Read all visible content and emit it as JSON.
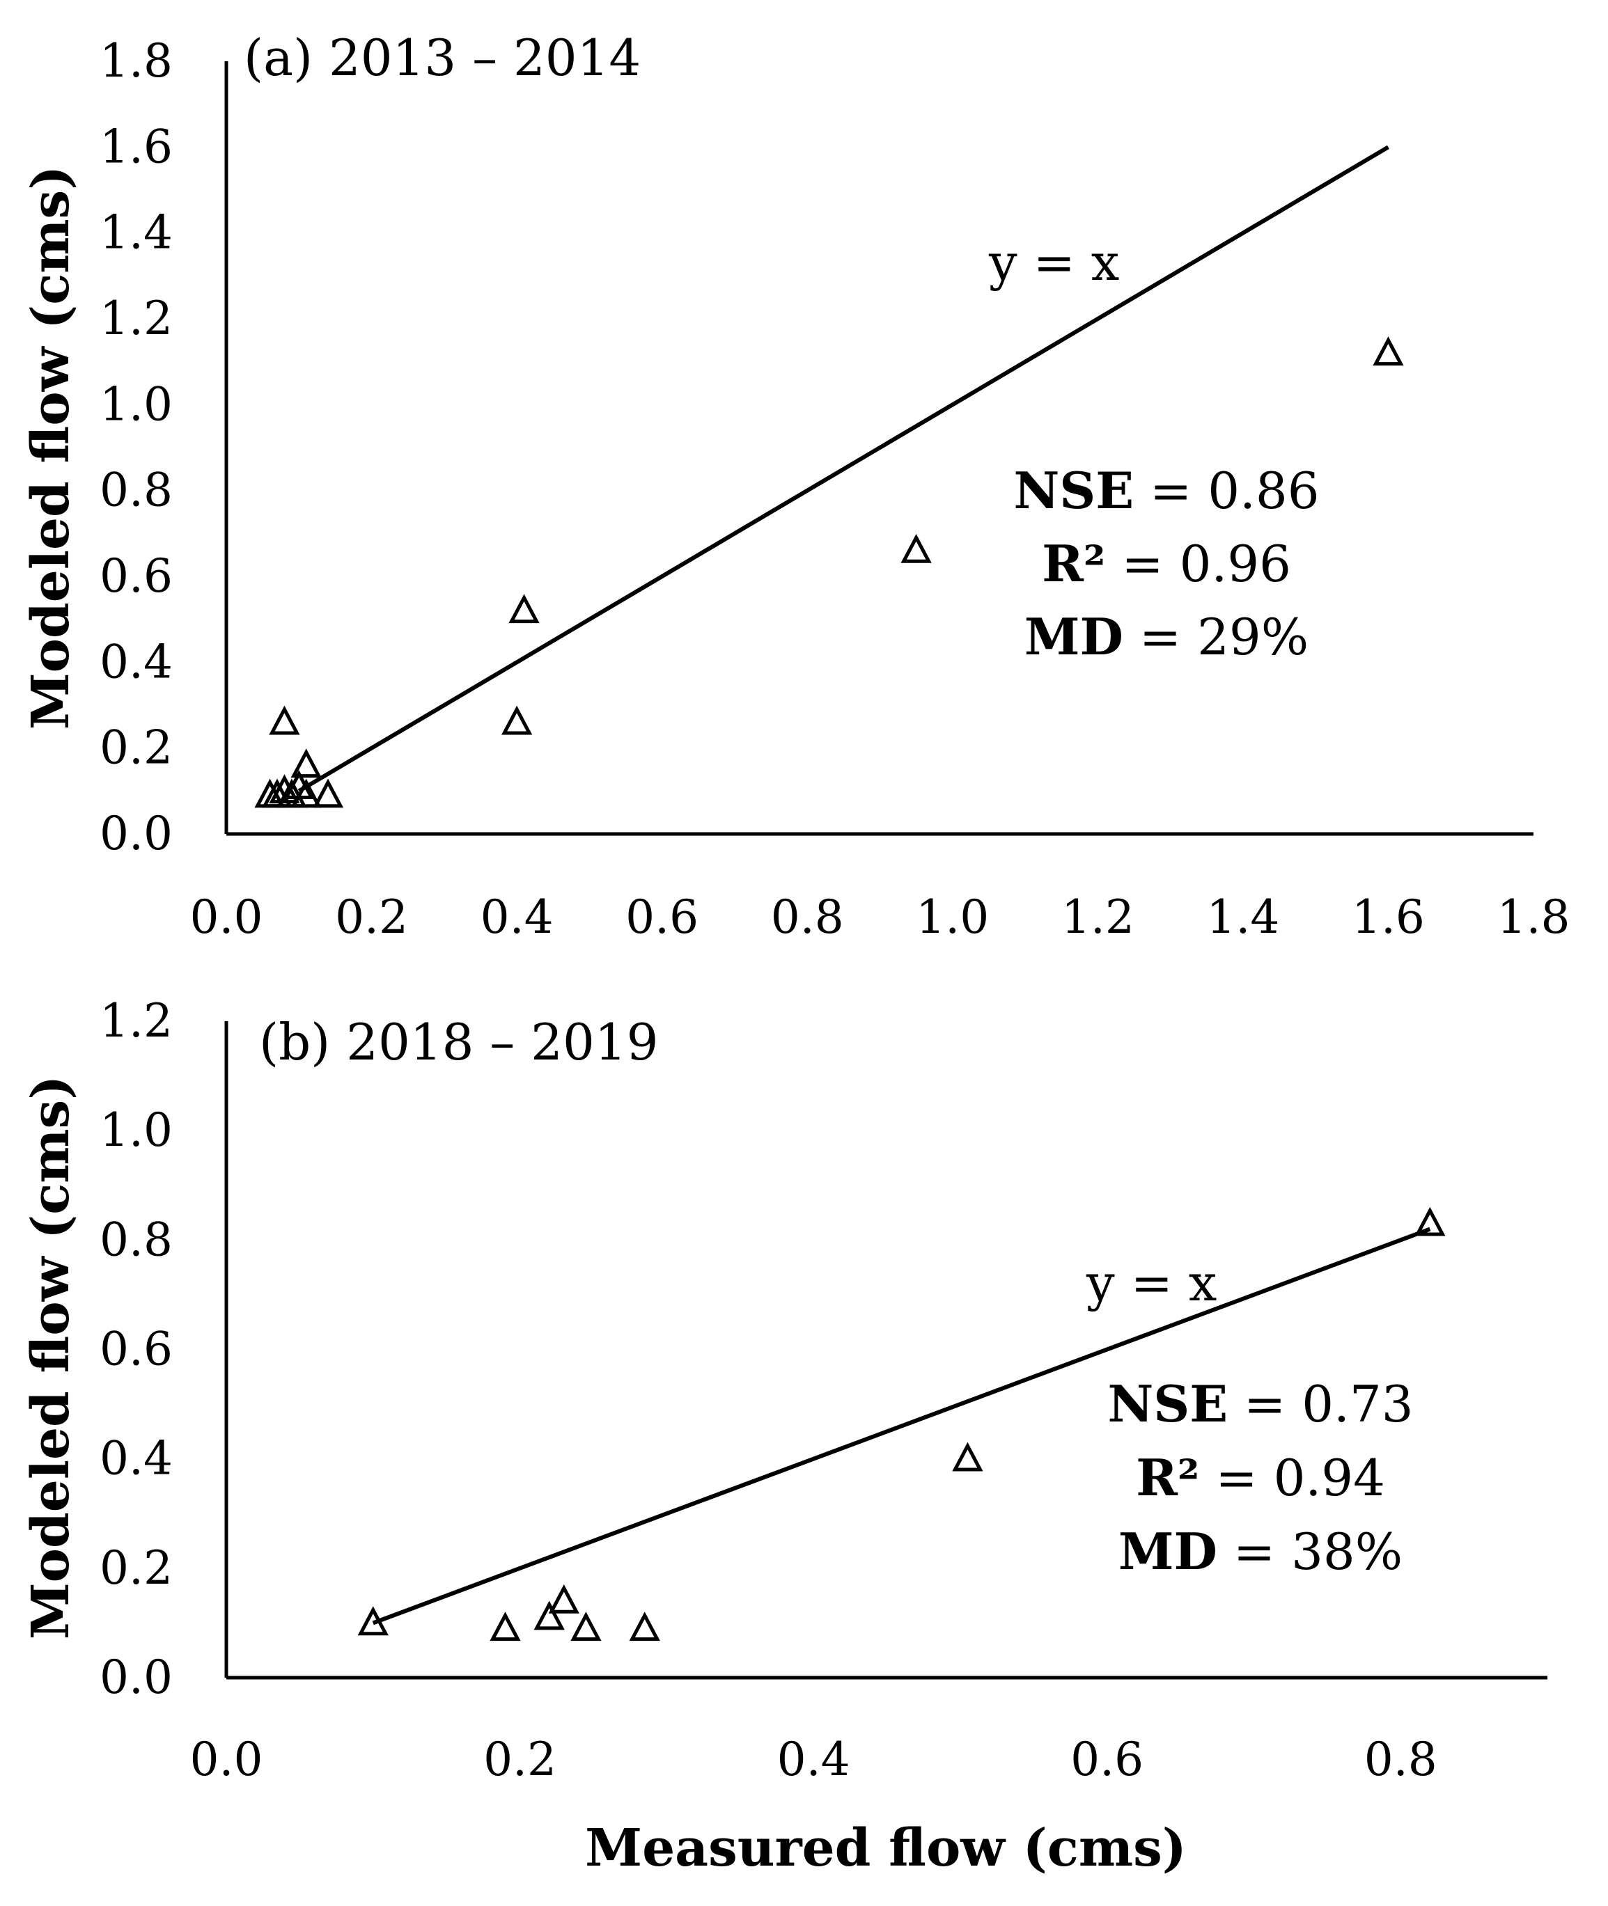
{
  "chart_data": [
    {
      "type": "scatter",
      "panel_label": "(a) 2013 – 2014",
      "xlabel": "",
      "ylabel": "Modeled flow (cms)",
      "xlim": [
        0.0,
        1.8
      ],
      "ylim": [
        0.0,
        1.8
      ],
      "x_ticks": [
        "0.0",
        "0.2",
        "0.4",
        "0.6",
        "0.8",
        "1.0",
        "1.2",
        "1.4",
        "1.6",
        "1.8"
      ],
      "y_ticks": [
        "0.0",
        "0.2",
        "0.4",
        "0.6",
        "0.8",
        "1.0",
        "1.2",
        "1.4",
        "1.6",
        "1.8"
      ],
      "marker": "triangle-open",
      "points": [
        {
          "x": 0.06,
          "y": 0.09
        },
        {
          "x": 0.07,
          "y": 0.09
        },
        {
          "x": 0.08,
          "y": 0.1
        },
        {
          "x": 0.09,
          "y": 0.09
        },
        {
          "x": 0.1,
          "y": 0.11
        },
        {
          "x": 0.11,
          "y": 0.09
        },
        {
          "x": 0.14,
          "y": 0.09
        },
        {
          "x": 0.11,
          "y": 0.16
        },
        {
          "x": 0.08,
          "y": 0.26
        },
        {
          "x": 0.4,
          "y": 0.26
        },
        {
          "x": 0.41,
          "y": 0.52
        },
        {
          "x": 0.95,
          "y": 0.66
        },
        {
          "x": 1.6,
          "y": 1.12
        }
      ],
      "reference_line": {
        "label": "y = x",
        "from": [
          0.1,
          0.1
        ],
        "to": [
          1.6,
          1.6
        ]
      },
      "stats": [
        {
          "key": "NSE",
          "value": " = 0.86"
        },
        {
          "key": "R²",
          "value": " = 0.96"
        },
        {
          "key": "MD",
          "value": " = 29%"
        }
      ]
    },
    {
      "type": "scatter",
      "panel_label": "(b) 2018 – 2019",
      "xlabel": "Measured flow (cms)",
      "ylabel": "Modeled flow (cms)",
      "xlim": [
        0.0,
        0.9
      ],
      "ylim": [
        0.0,
        1.2
      ],
      "x_ticks": [
        "0.0",
        "0.2",
        "0.4",
        "0.6",
        "0.8"
      ],
      "y_ticks": [
        "0.0",
        "0.2",
        "0.4",
        "0.6",
        "0.8",
        "1.0",
        "1.2"
      ],
      "marker": "triangle-open",
      "points": [
        {
          "x": 0.1,
          "y": 0.1
        },
        {
          "x": 0.19,
          "y": 0.09
        },
        {
          "x": 0.22,
          "y": 0.11
        },
        {
          "x": 0.23,
          "y": 0.14
        },
        {
          "x": 0.245,
          "y": 0.09
        },
        {
          "x": 0.285,
          "y": 0.09
        },
        {
          "x": 0.505,
          "y": 0.4
        },
        {
          "x": 0.82,
          "y": 0.83
        }
      ],
      "reference_line": {
        "label": "y = x",
        "from": [
          0.1,
          0.1
        ],
        "to": [
          0.82,
          0.82
        ]
      },
      "stats": [
        {
          "key": "NSE",
          "value": " = 0.73"
        },
        {
          "key": "R²",
          "value": " = 0.94"
        },
        {
          "key": "MD",
          "value": " = 38%"
        }
      ]
    }
  ]
}
